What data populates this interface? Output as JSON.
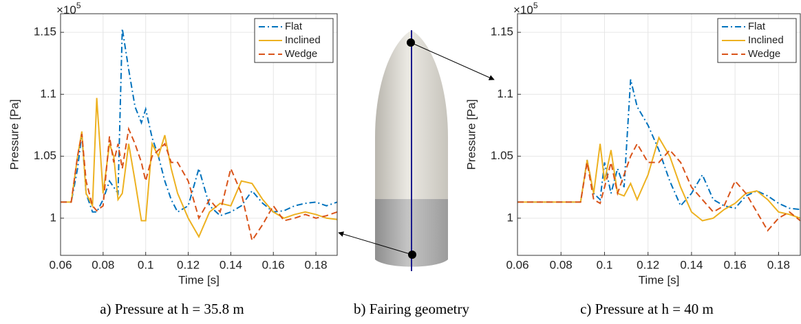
{
  "chart_data": [
    {
      "type": "line",
      "caption": "a) Pressure at h = 35.8 m",
      "x_label": "Time [s]",
      "y_label": "Pressure [Pa]",
      "y_multiplier": {
        "base": "×10",
        "exponent": "5"
      },
      "xlim": [
        0.06,
        0.19
      ],
      "ylim": [
        0.97,
        1.165
      ],
      "xticks": [
        0.06,
        0.08,
        0.1,
        0.12,
        0.14,
        0.16,
        0.18
      ],
      "yticks": [
        1,
        1.05,
        1.1,
        1.15
      ],
      "grid": true,
      "legend": "upper right",
      "x": [
        0.06,
        0.065,
        0.068,
        0.07,
        0.072,
        0.075,
        0.077,
        0.08,
        0.083,
        0.085,
        0.087,
        0.089,
        0.092,
        0.095,
        0.098,
        0.1,
        0.103,
        0.106,
        0.109,
        0.112,
        0.115,
        0.12,
        0.125,
        0.13,
        0.135,
        0.14,
        0.145,
        0.15,
        0.155,
        0.16,
        0.165,
        0.17,
        0.175,
        0.18,
        0.185,
        0.19
      ],
      "series": [
        {
          "name": "Flat",
          "color": "#0072bd",
          "style": "dashdot",
          "values": [
            1.013,
            1.013,
            1.04,
            1.068,
            1.02,
            1.005,
            1.005,
            1.015,
            1.03,
            1.025,
            1.02,
            1.153,
            1.12,
            1.09,
            1.077,
            1.088,
            1.065,
            1.05,
            1.03,
            1.015,
            1.005,
            1.01,
            1.04,
            1.01,
            1.002,
            1.005,
            1.01,
            1.022,
            1.012,
            1.005,
            1.006,
            1.01,
            1.012,
            1.013,
            1.01,
            1.013
          ]
        },
        {
          "name": "Inclined",
          "color": "#edb120",
          "style": "solid",
          "values": [
            1.013,
            1.013,
            1.05,
            1.07,
            1.02,
            1.01,
            1.097,
            1.02,
            1.06,
            1.05,
            1.015,
            1.02,
            1.06,
            1.03,
            0.998,
            0.998,
            1.06,
            1.05,
            1.067,
            1.04,
            1.02,
            1.0,
            0.985,
            1.005,
            1.012,
            1.01,
            1.03,
            1.028,
            1.015,
            1.005,
            1.0,
            1.003,
            1.005,
            1.003,
            1.0,
            0.999
          ]
        },
        {
          "name": "Wedge",
          "color": "#d95319",
          "style": "dashed",
          "values": [
            1.013,
            1.013,
            1.05,
            1.068,
            1.03,
            1.01,
            1.006,
            1.01,
            1.066,
            1.045,
            1.06,
            1.04,
            1.072,
            1.06,
            1.045,
            1.03,
            1.05,
            1.055,
            1.06,
            1.045,
            1.045,
            1.03,
            1.0,
            1.015,
            1.005,
            1.04,
            1.02,
            0.982,
            0.995,
            1.01,
            0.998,
            1.0,
            1.003,
            1.0,
            1.002,
            1.005
          ]
        }
      ]
    },
    {
      "type": "line",
      "caption": "c) Pressure at h = 40 m",
      "x_label": "Time [s]",
      "y_label": "Pressure [Pa]",
      "y_multiplier": {
        "base": "×10",
        "exponent": "5"
      },
      "xlim": [
        0.06,
        0.19
      ],
      "ylim": [
        0.97,
        1.165
      ],
      "xticks": [
        0.06,
        0.08,
        0.1,
        0.12,
        0.14,
        0.16,
        0.18
      ],
      "yticks": [
        1,
        1.05,
        1.1,
        1.15
      ],
      "grid": true,
      "legend": "upper right",
      "x": [
        0.06,
        0.089,
        0.092,
        0.095,
        0.098,
        0.1,
        0.103,
        0.106,
        0.109,
        0.112,
        0.115,
        0.12,
        0.125,
        0.13,
        0.135,
        0.14,
        0.145,
        0.15,
        0.155,
        0.16,
        0.165,
        0.17,
        0.175,
        0.18,
        0.185,
        0.19
      ],
      "series": [
        {
          "name": "Flat",
          "color": "#0072bd",
          "style": "dashdot",
          "values": [
            1.013,
            1.013,
            1.047,
            1.02,
            1.015,
            1.045,
            1.02,
            1.04,
            1.025,
            1.112,
            1.09,
            1.075,
            1.055,
            1.03,
            1.01,
            1.02,
            1.035,
            1.015,
            1.01,
            1.008,
            1.018,
            1.022,
            1.018,
            1.012,
            1.008,
            1.007
          ]
        },
        {
          "name": "Inclined",
          "color": "#edb120",
          "style": "solid",
          "values": [
            1.013,
            1.013,
            1.047,
            1.02,
            1.06,
            1.03,
            1.055,
            1.02,
            1.018,
            1.028,
            1.015,
            1.035,
            1.065,
            1.05,
            1.025,
            1.005,
            0.998,
            1.0,
            1.007,
            1.012,
            1.02,
            1.022,
            1.015,
            1.005,
            1.003,
            1.0
          ]
        },
        {
          "name": "Wedge",
          "color": "#d95319",
          "style": "dashed",
          "values": [
            1.013,
            1.013,
            1.045,
            1.015,
            1.012,
            1.025,
            1.045,
            1.02,
            1.035,
            1.05,
            1.06,
            1.045,
            1.045,
            1.055,
            1.045,
            1.025,
            1.015,
            1.005,
            1.01,
            1.03,
            1.02,
            1.005,
            0.99,
            1.0,
            1.005,
            0.998
          ]
        }
      ]
    }
  ],
  "diagram": {
    "caption": "b) Fairing geometry"
  }
}
